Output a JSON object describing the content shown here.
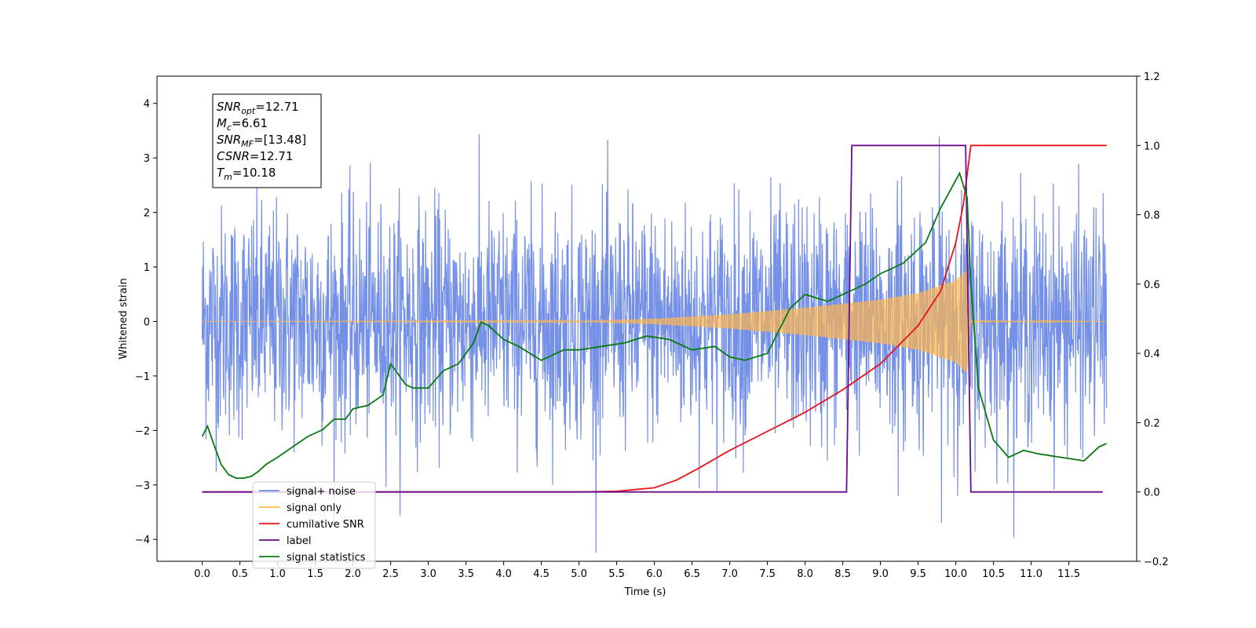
{
  "chart_data": {
    "type": "line",
    "xlabel": "Time (s)",
    "ylabel": "Whitened strain",
    "xlim": [
      -0.6,
      12.4
    ],
    "ylim": [
      -4.4,
      4.5
    ],
    "y2lim": [
      -0.2,
      1.2
    ],
    "xticks": [
      "0.0",
      "0.5",
      "1.0",
      "1.5",
      "2.0",
      "2.5",
      "3.0",
      "3.5",
      "4.0",
      "4.5",
      "5.0",
      "5.5",
      "6.0",
      "6.5",
      "7.0",
      "7.5",
      "8.0",
      "8.5",
      "9.0",
      "9.5",
      "10.0",
      "10.5",
      "11.0",
      "11.5"
    ],
    "yticks": [
      "4",
      "3",
      "2",
      "1",
      "0",
      "−1",
      "−2",
      "−3",
      "−4"
    ],
    "y2ticks": [
      "1.2",
      "1.0",
      "0.8",
      "0.6",
      "0.4",
      "0.2",
      "0.0",
      "−0.2"
    ],
    "annotation": [
      {
        "base": "SNR",
        "sub": "opt",
        "rest": "=12.71"
      },
      {
        "base": "M",
        "sub": "c",
        "rest": "=6.61"
      },
      {
        "base": "SNR",
        "sub": "MF",
        "rest": "=[13.48]"
      },
      {
        "base": "CSNR",
        "sub": "",
        "rest": "=12.71"
      },
      {
        "base": "T",
        "sub": "m",
        "rest": "=10.18"
      }
    ],
    "legend_location": "bottom-left",
    "series": [
      {
        "name": "signal+ noise",
        "axis": "left",
        "color": "#6e8ae6",
        "noise_amplitude_std": 1.0,
        "x_range": [
          0.0,
          12.0
        ]
      },
      {
        "name": "signal only",
        "axis": "left",
        "color": "#ffb74d",
        "envelope": [
          [
            0.0,
            0.0
          ],
          [
            5.0,
            0.01
          ],
          [
            6.0,
            0.05
          ],
          [
            7.0,
            0.13
          ],
          [
            8.0,
            0.25
          ],
          [
            9.0,
            0.4
          ],
          [
            9.5,
            0.52
          ],
          [
            10.0,
            0.75
          ],
          [
            10.15,
            0.95
          ],
          [
            10.2,
            0.02
          ],
          [
            12.0,
            0.0
          ]
        ]
      },
      {
        "name": "cumilative SNR",
        "axis": "right",
        "color": "#e8141c",
        "points": [
          [
            0.0,
            0.0
          ],
          [
            5.0,
            0.0
          ],
          [
            5.5,
            0.002
          ],
          [
            6.0,
            0.012
          ],
          [
            6.3,
            0.035
          ],
          [
            6.6,
            0.07
          ],
          [
            7.0,
            0.12
          ],
          [
            7.5,
            0.175
          ],
          [
            8.0,
            0.23
          ],
          [
            8.5,
            0.295
          ],
          [
            9.0,
            0.37
          ],
          [
            9.5,
            0.48
          ],
          [
            9.8,
            0.58
          ],
          [
            10.0,
            0.72
          ],
          [
            10.1,
            0.83
          ],
          [
            10.2,
            1.0
          ],
          [
            12.0,
            1.0
          ]
        ]
      },
      {
        "name": "label",
        "axis": "right",
        "color": "#6a0e8c",
        "points": [
          [
            0.0,
            0.0
          ],
          [
            8.55,
            0.0
          ],
          [
            8.62,
            1.0
          ],
          [
            10.13,
            1.0
          ],
          [
            10.2,
            0.0
          ],
          [
            11.95,
            0.0
          ]
        ]
      },
      {
        "name": "signal statistics",
        "axis": "right",
        "color": "#0a7a10",
        "points": [
          [
            0.0,
            0.16
          ],
          [
            0.07,
            0.19
          ],
          [
            0.15,
            0.14
          ],
          [
            0.25,
            0.08
          ],
          [
            0.35,
            0.05
          ],
          [
            0.45,
            0.04
          ],
          [
            0.55,
            0.04
          ],
          [
            0.65,
            0.045
          ],
          [
            0.75,
            0.06
          ],
          [
            0.85,
            0.08
          ],
          [
            1.0,
            0.1
          ],
          [
            1.2,
            0.13
          ],
          [
            1.4,
            0.16
          ],
          [
            1.6,
            0.18
          ],
          [
            1.75,
            0.21
          ],
          [
            1.9,
            0.21
          ],
          [
            2.0,
            0.24
          ],
          [
            2.2,
            0.25
          ],
          [
            2.4,
            0.28
          ],
          [
            2.5,
            0.37
          ],
          [
            2.6,
            0.34
          ],
          [
            2.7,
            0.31
          ],
          [
            2.8,
            0.3
          ],
          [
            3.0,
            0.3
          ],
          [
            3.2,
            0.35
          ],
          [
            3.4,
            0.37
          ],
          [
            3.6,
            0.43
          ],
          [
            3.7,
            0.49
          ],
          [
            3.8,
            0.48
          ],
          [
            4.0,
            0.44
          ],
          [
            4.2,
            0.42
          ],
          [
            4.5,
            0.38
          ],
          [
            4.8,
            0.41
          ],
          [
            5.0,
            0.41
          ],
          [
            5.3,
            0.42
          ],
          [
            5.6,
            0.43
          ],
          [
            5.9,
            0.45
          ],
          [
            6.2,
            0.44
          ],
          [
            6.5,
            0.41
          ],
          [
            6.8,
            0.42
          ],
          [
            7.0,
            0.39
          ],
          [
            7.2,
            0.38
          ],
          [
            7.5,
            0.4
          ],
          [
            7.8,
            0.53
          ],
          [
            8.0,
            0.57
          ],
          [
            8.3,
            0.55
          ],
          [
            8.6,
            0.58
          ],
          [
            8.8,
            0.6
          ],
          [
            9.0,
            0.63
          ],
          [
            9.3,
            0.66
          ],
          [
            9.6,
            0.72
          ],
          [
            9.8,
            0.82
          ],
          [
            9.95,
            0.88
          ],
          [
            10.05,
            0.92
          ],
          [
            10.15,
            0.85
          ],
          [
            10.2,
            0.6
          ],
          [
            10.3,
            0.3
          ],
          [
            10.5,
            0.15
          ],
          [
            10.7,
            0.1
          ],
          [
            10.9,
            0.12
          ],
          [
            11.1,
            0.11
          ],
          [
            11.4,
            0.1
          ],
          [
            11.7,
            0.09
          ],
          [
            11.9,
            0.13
          ],
          [
            12.0,
            0.14
          ]
        ]
      }
    ]
  }
}
